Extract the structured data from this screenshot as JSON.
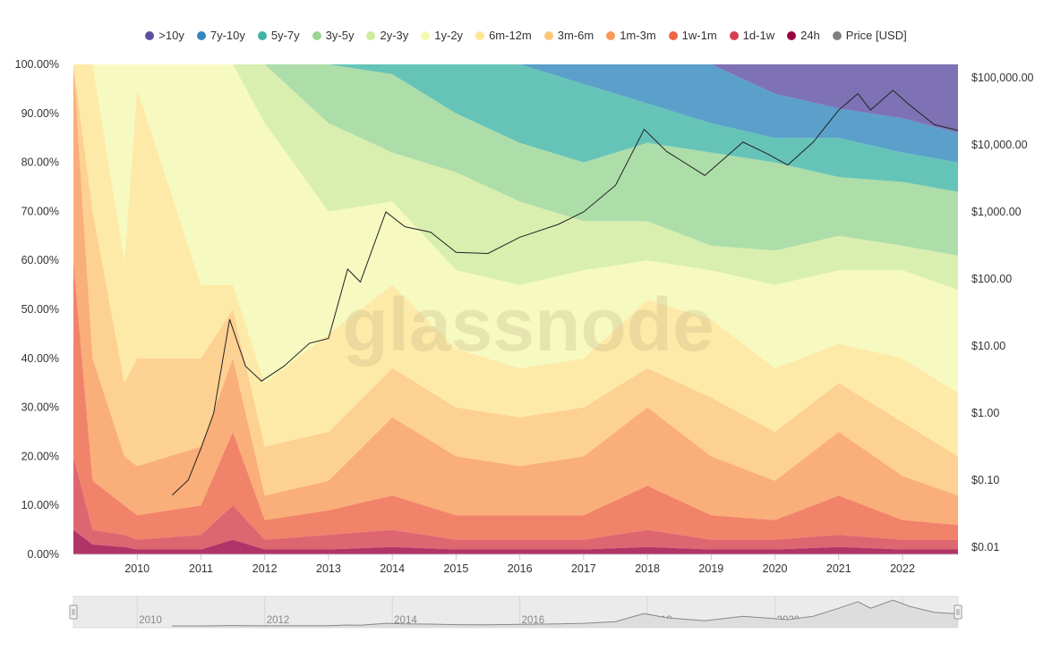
{
  "chart_data": {
    "type": "area",
    "subtype": "stacked-percent with log price overlay",
    "watermark": "glassnode",
    "x_domain": [
      2009.0,
      2022.87
    ],
    "x_ticks": [
      "2010",
      "2011",
      "2012",
      "2013",
      "2014",
      "2015",
      "2016",
      "2017",
      "2018",
      "2019",
      "2020",
      "2021",
      "2022"
    ],
    "y_left": {
      "ylim": [
        0,
        100
      ],
      "ticks": [
        "0.00%",
        "10.00%",
        "20.00%",
        "30.00%",
        "40.00%",
        "50.00%",
        "60.00%",
        "70.00%",
        "80.00%",
        "90.00%",
        "100.00%"
      ]
    },
    "y_right": {
      "scale": "log",
      "ylim": [
        0.01,
        100000
      ],
      "ticks": [
        "$0.01",
        "$0.10",
        "$1.00",
        "$10.00",
        "$100.00",
        "$1,000.00",
        "$10,000.00",
        "$100,000.00"
      ]
    },
    "legend": [
      {
        "name": ">10y",
        "color": "#5e4fa2"
      },
      {
        "name": "7y-10y",
        "color": "#3288bd"
      },
      {
        "name": "5y-7y",
        "color": "#3fb5a5"
      },
      {
        "name": "3y-5y",
        "color": "#99d594"
      },
      {
        "name": "2y-3y",
        "color": "#cfeb9b"
      },
      {
        "name": "1y-2y",
        "color": "#f4f9b0"
      },
      {
        "name": "6m-12m",
        "color": "#fee592"
      },
      {
        "name": "3m-6m",
        "color": "#fdc676"
      },
      {
        "name": "1m-3m",
        "color": "#f99a58"
      },
      {
        "name": "1w-1m",
        "color": "#ee6445"
      },
      {
        "name": "1d-1w",
        "color": "#d6404e"
      },
      {
        "name": "24h",
        "color": "#9e0142"
      },
      {
        "name": "Price [USD]",
        "color": "#808080"
      }
    ],
    "x": [
      2009.0,
      2009.3,
      2009.8,
      2010.0,
      2011.0,
      2011.5,
      2012.0,
      2013.0,
      2014.0,
      2015.0,
      2016.0,
      2017.0,
      2018.0,
      2019.0,
      2020.0,
      2021.0,
      2022.0,
      2022.87
    ],
    "cumulative_top_percent": {
      "24h": [
        5,
        2,
        1.5,
        1,
        1,
        3,
        1,
        1,
        1.5,
        1,
        1,
        1,
        1.5,
        1,
        1,
        1.5,
        1,
        1
      ],
      "1d-1w": [
        20,
        5,
        4,
        3,
        4,
        10,
        3,
        4,
        5,
        3,
        3,
        3,
        5,
        3,
        3,
        4,
        3,
        3
      ],
      "1w-1m": [
        60,
        15,
        10,
        8,
        10,
        25,
        7,
        9,
        12,
        8,
        8,
        8,
        14,
        8,
        7,
        12,
        7,
        6
      ],
      "1m-3m": [
        100,
        40,
        20,
        18,
        22,
        40,
        12,
        15,
        28,
        20,
        18,
        20,
        30,
        20,
        15,
        25,
        16,
        12
      ],
      "3m-6m": [
        100,
        70,
        35,
        40,
        40,
        50,
        22,
        25,
        38,
        30,
        28,
        30,
        38,
        32,
        25,
        35,
        27,
        20
      ],
      "6m-12m": [
        100,
        100,
        60,
        95,
        55,
        55,
        35,
        45,
        55,
        42,
        38,
        40,
        52,
        48,
        38,
        43,
        40,
        33
      ],
      "1y-2y": [
        100,
        100,
        100,
        100,
        100,
        100,
        88,
        70,
        72,
        58,
        55,
        58,
        60,
        58,
        55,
        58,
        58,
        54
      ],
      "2y-3y": [
        100,
        100,
        100,
        100,
        100,
        100,
        100,
        88,
        82,
        78,
        72,
        68,
        68,
        63,
        62,
        65,
        63,
        61
      ],
      "3y-5y": [
        100,
        100,
        100,
        100,
        100,
        100,
        100,
        100,
        98,
        90,
        84,
        80,
        84,
        82,
        80,
        77,
        76,
        74
      ],
      "5y-7y": [
        100,
        100,
        100,
        100,
        100,
        100,
        100,
        100,
        100,
        100,
        100,
        96,
        92,
        88,
        85,
        85,
        82,
        80
      ],
      "7y-10y": [
        100,
        100,
        100,
        100,
        100,
        100,
        100,
        100,
        100,
        100,
        100,
        100,
        100,
        100,
        94,
        91,
        89,
        86
      ],
      ">10y": [
        100,
        100,
        100,
        100,
        100,
        100,
        100,
        100,
        100,
        100,
        100,
        100,
        100,
        100,
        100,
        100,
        100,
        100
      ]
    },
    "price": [
      [
        2010.55,
        0.06
      ],
      [
        2010.8,
        0.1
      ],
      [
        2011.0,
        0.3
      ],
      [
        2011.2,
        1
      ],
      [
        2011.45,
        25
      ],
      [
        2011.7,
        5
      ],
      [
        2011.95,
        3
      ],
      [
        2012.3,
        5
      ],
      [
        2012.7,
        11
      ],
      [
        2013.0,
        13
      ],
      [
        2013.3,
        140
      ],
      [
        2013.5,
        90
      ],
      [
        2013.9,
        1000
      ],
      [
        2014.2,
        600
      ],
      [
        2014.6,
        500
      ],
      [
        2015.0,
        250
      ],
      [
        2015.5,
        240
      ],
      [
        2016.0,
        420
      ],
      [
        2016.6,
        650
      ],
      [
        2017.0,
        1000
      ],
      [
        2017.5,
        2500
      ],
      [
        2017.95,
        17000
      ],
      [
        2018.3,
        8000
      ],
      [
        2018.9,
        3500
      ],
      [
        2019.5,
        11000
      ],
      [
        2019.9,
        7200
      ],
      [
        2020.2,
        5000
      ],
      [
        2020.6,
        11000
      ],
      [
        2021.0,
        33000
      ],
      [
        2021.3,
        58000
      ],
      [
        2021.5,
        33000
      ],
      [
        2021.85,
        65000
      ],
      [
        2022.1,
        40000
      ],
      [
        2022.5,
        20000
      ],
      [
        2022.87,
        16500
      ]
    ],
    "navigator_ticks": [
      "2010",
      "2012",
      "2014",
      "2016",
      "2018",
      "2020",
      "2022"
    ]
  }
}
